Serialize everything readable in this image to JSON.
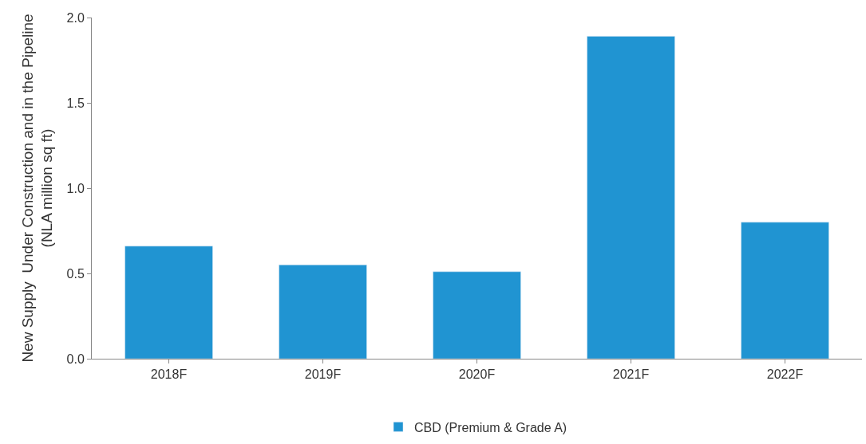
{
  "chart_data": {
    "type": "bar",
    "ylabel": "New Supply  Under Construction and in the Pipeline\n(NLA million sq ft)",
    "categories": [
      "2018F",
      "2019F",
      "2020F",
      "2021F",
      "2022F"
    ],
    "series": [
      {
        "name": "CBD (Premium & Grade A)",
        "color": "#2094d2",
        "values": [
          0.66,
          0.55,
          0.51,
          1.89,
          0.8
        ]
      }
    ],
    "ylim": [
      0,
      2.0
    ],
    "yticks": [
      {
        "value": 0,
        "label": "0.0"
      },
      {
        "value": 0.5,
        "label": "0.5"
      },
      {
        "value": 1.0,
        "label": "1.0"
      },
      {
        "value": 1.5,
        "label": "1.5"
      },
      {
        "value": 2.0,
        "label": "2.0"
      }
    ],
    "legend": "bottom"
  }
}
